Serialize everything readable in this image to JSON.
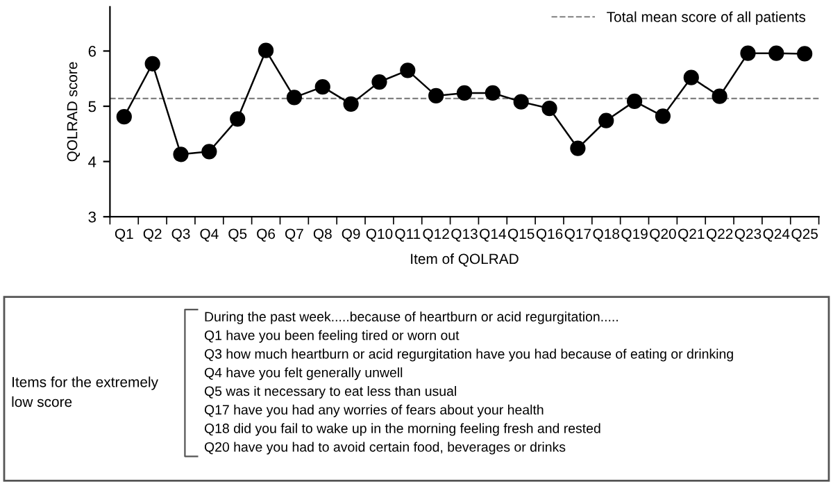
{
  "chart_data": {
    "type": "line",
    "xlabel": "Item of QOLRAD",
    "ylabel": "QOLRAD score",
    "categories": [
      "Q1",
      "Q2",
      "Q3",
      "Q4",
      "Q5",
      "Q6",
      "Q7",
      "Q8",
      "Q9",
      "Q10",
      "Q11",
      "Q12",
      "Q13",
      "Q14",
      "Q15",
      "Q16",
      "Q17",
      "Q18",
      "Q19",
      "Q20",
      "Q21",
      "Q22",
      "Q23",
      "Q24",
      "Q25"
    ],
    "series": [
      {
        "color": "#000000",
        "values": [
          4.81,
          5.77,
          4.13,
          4.18,
          4.77,
          6.01,
          5.16,
          5.35,
          5.04,
          5.44,
          5.65,
          5.19,
          5.24,
          5.24,
          5.08,
          4.96,
          4.24,
          4.74,
          5.09,
          4.82,
          5.52,
          5.18,
          5.96,
          5.96,
          5.95
        ]
      }
    ],
    "ylim": [
      3,
      6.8
    ],
    "yticks": [
      3,
      4,
      5,
      6
    ],
    "marker": "circle",
    "line_style": "solid",
    "grid": false,
    "legend": "top right",
    "ref_lines": [
      {
        "axis": "y",
        "value": 5.14,
        "label": "Total mean score of all patients",
        "color": "#808080",
        "line_style": "dashed"
      }
    ],
    "annotations": [
      "Items for the extremely low score",
      "During the past week.....because of heartburn or acid regurgitation.....",
      "Q1 have you been feeling tired or worn out",
      "Q3 how much heartburn or acid regurgitation have you had because of eating or drinking",
      "Q4 have you felt generally unwell",
      "Q5 was it necessary to eat less than usual",
      "Q17 have you had any worries of fears about your health",
      "Q18 did you fail to wake up in the morning feeling fresh and rested",
      "Q20 have you had to avoid certain food, beverages or drinks"
    ]
  }
}
